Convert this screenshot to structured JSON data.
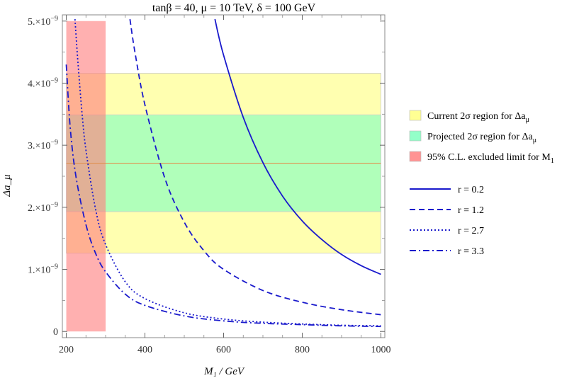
{
  "chart_data": {
    "type": "line",
    "title": "tanβ = 40, μ = 10 TeV, δ = 100 GeV",
    "xlabel": "M₁ / GeV",
    "ylabel": "Δa_μ",
    "xlim": [
      190,
      1010
    ],
    "ylim": [
      -1e-10,
      5.1e-09
    ],
    "x_ticks": [
      200,
      400,
      600,
      800,
      1000
    ],
    "x_tick_labels": [
      "200",
      "400",
      "600",
      "800",
      "1000"
    ],
    "y_ticks": [
      0,
      1e-09,
      2e-09,
      3e-09,
      4e-09,
      5e-09
    ],
    "y_tick_labels": [
      {
        "mant": "0",
        "exp": ""
      },
      {
        "mant": "1.×10",
        "exp": "−9"
      },
      {
        "mant": "2.×10",
        "exp": "−9"
      },
      {
        "mant": "3.×10",
        "exp": "−9"
      },
      {
        "mant": "4.×10",
        "exp": "−9"
      },
      {
        "mant": "5.×10",
        "exp": "−9"
      }
    ],
    "grid": false,
    "legend_position": "right",
    "bands": [
      {
        "name": "Current 2σ region for Δa_μ",
        "label_main": "Current 2σ region for Δa",
        "label_sub": "μ",
        "x": [
          200,
          1000
        ],
        "y": [
          1.26e-09,
          4.16e-09
        ],
        "color": "#ffff80"
      },
      {
        "name": "Projected 2σ region for Δa_μ",
        "label_main": "Projected 2σ region for Δa",
        "label_sub": "μ",
        "x": [
          200,
          1000
        ],
        "y": [
          1.93e-09,
          3.49e-09
        ],
        "color": "#80ffc0"
      },
      {
        "name": "95% C.L. excluded limit for M₁",
        "label_main": "95% C.L. excluded limit for M",
        "label_sub": "1",
        "x": [
          200,
          300
        ],
        "y": [
          0,
          5e-09
        ],
        "color": "#ff8080"
      }
    ],
    "central_value": {
      "y": 2.71e-09,
      "color": "#e09050"
    },
    "series": [
      {
        "name": "r = 0.2",
        "label": "r = 0.2",
        "style": "solid",
        "x": [
          578,
          600,
          650,
          700,
          750,
          800,
          850,
          900,
          950,
          1000
        ],
        "y": [
          5.03e-09,
          4.45e-09,
          3.45e-09,
          2.72e-09,
          2.18e-09,
          1.78e-09,
          1.48e-09,
          1.24e-09,
          1.06e-09,
          9.2e-10
        ]
      },
      {
        "name": "r = 1.2",
        "label": "r = 1.2",
        "style": "dashed",
        "x": [
          362,
          375,
          400,
          450,
          500,
          550,
          600,
          700,
          800,
          900,
          1000
        ],
        "y": [
          5.03e-09,
          4.48e-09,
          3.65e-09,
          2.48e-09,
          1.76e-09,
          1.3e-09,
          1e-09,
          6.6e-10,
          4.7e-10,
          3.5e-10,
          2.7e-10
        ]
      },
      {
        "name": "r = 2.7",
        "label": "r = 2.7",
        "style": "dotted",
        "x": [
          222,
          230,
          240,
          250,
          275,
          300,
          350,
          400,
          500,
          600,
          700,
          800,
          900,
          1000
        ],
        "y": [
          5.03e-09,
          4.3e-09,
          3.52e-09,
          2.92e-09,
          1.95e-09,
          1.4e-09,
          8e-10,
          5.3e-10,
          3e-10,
          2e-10,
          1.5e-10,
          1.2e-10,
          1e-10,
          9e-11
        ]
      },
      {
        "name": "r = 3.3",
        "label": "r = 3.3",
        "style": "dashdot",
        "x": [
          200,
          210,
          225,
          250,
          275,
          300,
          350,
          400,
          500,
          600,
          700,
          800,
          900,
          1000
        ],
        "y": [
          4.3e-09,
          3.28e-09,
          2.48e-09,
          1.72e-09,
          1.25e-09,
          9.6e-10,
          6e-10,
          4.2e-10,
          2.5e-10,
          1.7e-10,
          1.3e-10,
          1.1e-10,
          9e-11,
          8e-11
        ]
      }
    ],
    "line_color": "#1a1acc"
  }
}
